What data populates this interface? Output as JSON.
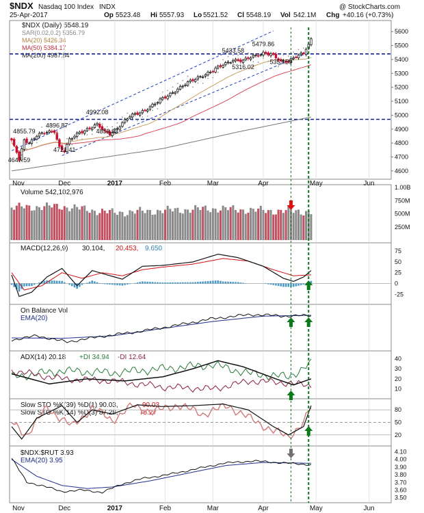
{
  "header": {
    "symbol": "$NDX",
    "name": "Nasdaq 100 Index",
    "exchange": "INDX",
    "date": "25-Apr-2017",
    "open_label": "Op",
    "open": "5523.48",
    "high_label": "Hi",
    "high": "5557.93",
    "low_label": "Lo",
    "low": "5521.52",
    "close_label": "Cl",
    "close": "5548.19",
    "vol_label": "Vol",
    "vol": "542.1M",
    "chg_label": "Chg",
    "chg": "+40.16 (+0.73%)",
    "watermark": "@ StockCharts.com"
  },
  "colors": {
    "up": "#1a1a1a",
    "down": "#c8102e",
    "ma20": "#c8a060",
    "ma50": "#d94a5a",
    "ma200": "#777777",
    "channel": "#1f3fbf",
    "arrow_green": "#0a7a1a",
    "arrow_red": "#e01010",
    "arrow_gray": "#707070"
  },
  "chart_data": {
    "type": "financial-multi-panel",
    "x_labels": [
      "Nov",
      "Dec",
      "2017",
      "Feb",
      "Mar",
      "Apr",
      "May",
      "Jun"
    ],
    "panels": {
      "price": {
        "legend": [
          {
            "text": "$NDX (Daily) 5548.19",
            "color": "#1a1a1a"
          },
          {
            "text": "SAR(0.02,0.2) 5356.79",
            "color": "#888888"
          },
          {
            "text": "MA(20) 5426.34",
            "color": "#c8a060"
          },
          {
            "text": "MA(50) 5384.17",
            "color": "#d94a5a"
          },
          {
            "text": "MA(200) 4987.54",
            "color": "#1a1a1a"
          }
        ],
        "y_ticks": [
          4600,
          4700,
          4800,
          4900,
          5000,
          5100,
          5200,
          5300,
          5400,
          5500,
          5600
        ],
        "ylim": [
          4560,
          5660
        ],
        "annotations": [
          {
            "label": "4647.59",
            "day": 3,
            "value": 4647.59
          },
          {
            "label": "4855.79",
            "day": 5,
            "value": 4855.79
          },
          {
            "label": "4896.87",
            "day": 18,
            "value": 4896.87
          },
          {
            "label": "4721.41",
            "day": 21,
            "value": 4721.41
          },
          {
            "label": "4853.93",
            "day": 38,
            "value": 4853.93
          },
          {
            "label": "4992.08",
            "day": 34,
            "value": 4992.08
          },
          {
            "label": "5433.58",
            "day": 88,
            "value": 5433.58
          },
          {
            "label": "5316.02",
            "day": 92,
            "value": 5316.02
          },
          {
            "label": "5479.86",
            "day": 100,
            "value": 5479.86
          },
          {
            "label": "5353.59",
            "day": 107,
            "value": 5353.59
          }
        ],
        "support_levels": [
          5440,
          4970
        ]
      },
      "volume": {
        "legend": "Volume 542,102,976",
        "y_ticks": [
          "1.00B",
          "750M",
          "500M",
          "250M"
        ],
        "ylim": [
          0,
          1000
        ]
      },
      "macd": {
        "legend_parts": [
          "MACD(12,26,9)",
          "30.104,",
          "20.453,",
          "9.650"
        ],
        "y_ticks": [
          75,
          50,
          25,
          0,
          -25
        ],
        "ylim": [
          -42,
          88
        ]
      },
      "obv": {
        "legend_parts": [
          "On Balance Vol",
          "EMA(20)"
        ]
      },
      "adx": {
        "legend_parts": [
          "ADX(14) 20.18",
          "+DI 34.94",
          "-DI 12.64"
        ],
        "y_ticks": [
          40,
          30,
          20,
          10
        ],
        "ylim": [
          3,
          45
        ]
      },
      "sto": {
        "legend1_parts": [
          "Slow STO %K(39) %D(1) 90.03,",
          "90.03"
        ],
        "legend2_parts": [
          "Slow STO %K(14) %D(3) 87.28,",
          "75.27"
        ],
        "y_ticks": [
          80,
          50,
          20
        ],
        "ylim": [
          0,
          100
        ]
      },
      "ratio": {
        "legend_parts": [
          "$NDX:$RUT 3.93",
          "EMA(20) 3.95"
        ],
        "y_ticks": [
          "4.10",
          "4.00",
          "3.90",
          "3.80",
          "3.70",
          "3.60",
          "3.50"
        ],
        "ylim": [
          3.47,
          4.14
        ]
      }
    }
  }
}
